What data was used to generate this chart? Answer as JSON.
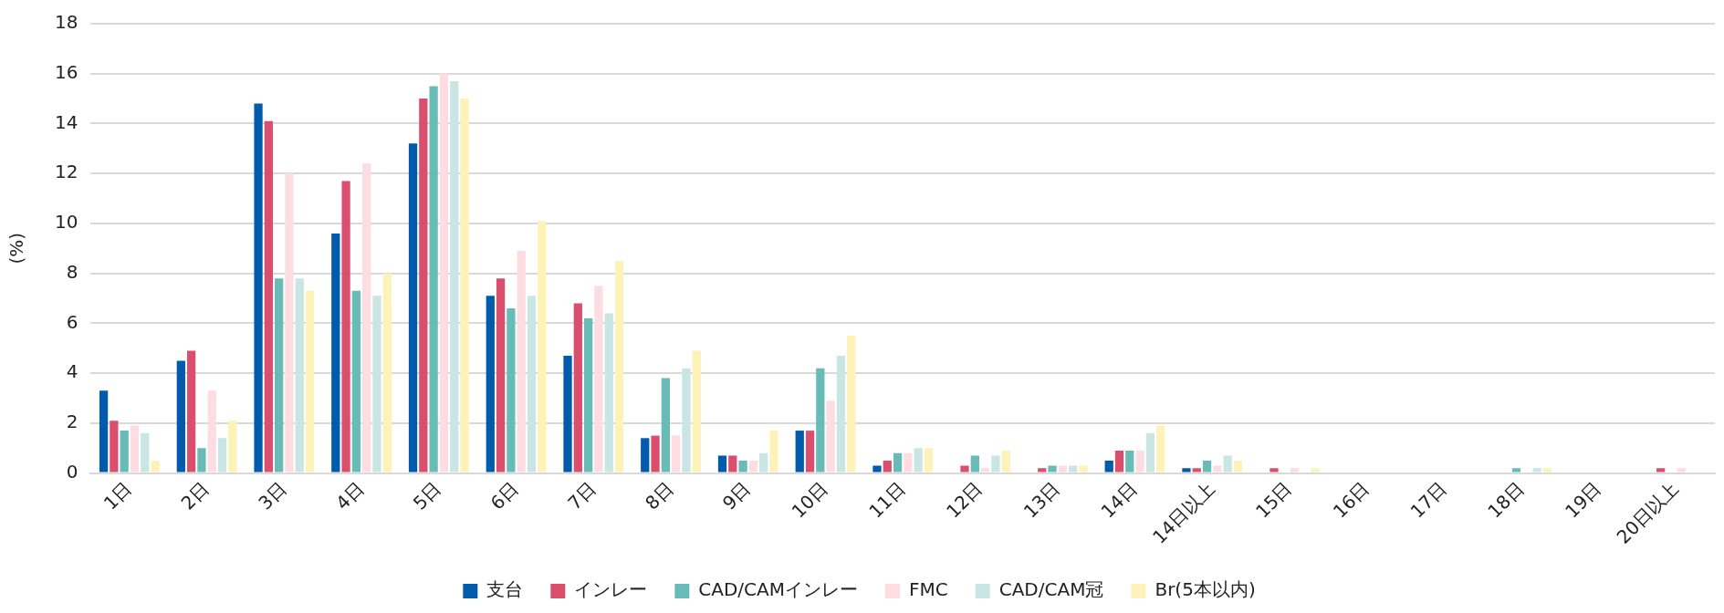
{
  "chart_data": {
    "type": "bar",
    "ylabel": "(%)",
    "categories": [
      "1日",
      "2日",
      "3日",
      "4日",
      "5日",
      "6日",
      "7日",
      "8日",
      "9日",
      "10日",
      "11日",
      "12日",
      "13日",
      "14日",
      "14日以上",
      "15日",
      "16日",
      "17日",
      "18日",
      "19日",
      "20日以上"
    ],
    "series": [
      {
        "name": "支台",
        "color": "#005bac",
        "values": [
          3.3,
          4.5,
          14.8,
          9.6,
          13.2,
          7.1,
          4.7,
          1.4,
          0.7,
          1.7,
          0.3,
          0,
          0,
          0.5,
          0.2,
          0,
          0,
          0,
          0,
          0,
          0
        ]
      },
      {
        "name": "インレー",
        "color": "#da4f6e",
        "values": [
          2.1,
          4.9,
          14.1,
          11.7,
          15.0,
          7.8,
          6.8,
          1.5,
          0.7,
          1.7,
          0.5,
          0.3,
          0.2,
          0.9,
          0.2,
          0.2,
          0,
          0,
          0,
          0,
          0.2
        ]
      },
      {
        "name": "CAD/CAMインレー",
        "color": "#68bbb7",
        "values": [
          1.7,
          1.0,
          7.8,
          7.3,
          15.5,
          6.6,
          6.2,
          3.8,
          0.5,
          4.2,
          0.8,
          0.7,
          0.3,
          0.9,
          0.5,
          0,
          0,
          0,
          0.2,
          0,
          0
        ]
      },
      {
        "name": "FMC",
        "color": "#fddde1",
        "values": [
          1.9,
          3.3,
          12.0,
          12.4,
          16.0,
          8.9,
          7.5,
          1.5,
          0.5,
          2.9,
          0.8,
          0.2,
          0.3,
          0.9,
          0.3,
          0.2,
          0,
          0,
          0,
          0,
          0.2
        ]
      },
      {
        "name": "CAD/CAM冠",
        "color": "#c9e6e5",
        "values": [
          1.6,
          1.4,
          7.8,
          7.1,
          15.7,
          7.1,
          6.4,
          4.2,
          0.8,
          4.7,
          1.0,
          0.7,
          0.3,
          1.6,
          0.7,
          0,
          0,
          0,
          0.2,
          0,
          0
        ]
      },
      {
        "name": "Br(5本以内)",
        "color": "#fdf2b8",
        "values": [
          0.5,
          2.1,
          7.3,
          8.0,
          15.0,
          10.1,
          8.5,
          4.9,
          1.7,
          5.5,
          1.0,
          0.9,
          0.3,
          1.9,
          0.5,
          0.2,
          0,
          0,
          0.2,
          0,
          0
        ]
      }
    ],
    "ylim": [
      0,
      18
    ],
    "yticks": [
      0,
      2,
      4,
      6,
      8,
      10,
      12,
      14,
      16,
      18
    ],
    "grid": "y",
    "legend": "bottom"
  }
}
